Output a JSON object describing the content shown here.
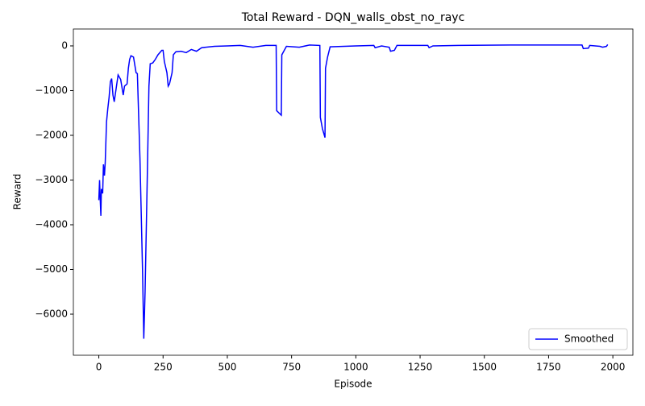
{
  "chart_data": {
    "type": "line",
    "title": "Total Reward - DQN_walls_obst_no_rayc",
    "xlabel": "Episode",
    "ylabel": "Reward",
    "x": [
      0,
      3,
      5,
      8,
      10,
      15,
      18,
      22,
      25,
      30,
      35,
      40,
      45,
      50,
      55,
      60,
      65,
      75,
      85,
      95,
      100,
      110,
      115,
      120,
      125,
      135,
      145,
      150,
      160,
      170,
      175,
      180,
      190,
      195,
      200,
      210,
      220,
      230,
      245,
      250,
      255,
      265,
      270,
      275,
      285,
      290,
      300,
      320,
      340,
      360,
      380,
      400,
      450,
      500,
      550,
      600,
      650,
      690,
      692,
      710,
      712,
      730,
      780,
      820,
      860,
      862,
      870,
      880,
      882,
      890,
      900,
      1000,
      1070,
      1075,
      1100,
      1130,
      1135,
      1150,
      1160,
      1280,
      1285,
      1300,
      1400,
      1600,
      1880,
      1885,
      1905,
      1910,
      1950,
      1960,
      1975,
      1980
    ],
    "series": [
      {
        "name": "Smoothed",
        "color": "#0000ff",
        "values": [
          -3450,
          -3000,
          -3350,
          -3800,
          -3200,
          -3300,
          -2650,
          -2900,
          -2600,
          -1700,
          -1400,
          -1150,
          -800,
          -730,
          -1100,
          -1250,
          -1050,
          -650,
          -750,
          -1100,
          -900,
          -850,
          -500,
          -300,
          -220,
          -250,
          -600,
          -620,
          -2500,
          -5000,
          -6550,
          -5500,
          -2500,
          -900,
          -400,
          -380,
          -300,
          -200,
          -100,
          -100,
          -350,
          -600,
          -900,
          -850,
          -600,
          -200,
          -130,
          -120,
          -150,
          -80,
          -120,
          -40,
          -10,
          0,
          10,
          -30,
          10,
          10,
          -1450,
          -1550,
          -200,
          -10,
          -30,
          20,
          10,
          -1600,
          -1850,
          -2050,
          -500,
          -250,
          -20,
          0,
          10,
          -40,
          0,
          -30,
          -120,
          -100,
          10,
          10,
          -40,
          0,
          10,
          20,
          20,
          -60,
          -50,
          10,
          -10,
          -30,
          -10,
          30
        ]
      }
    ],
    "xlim": [
      -99,
      2078
    ],
    "ylim": [
      -6919,
      378
    ],
    "xticks": [
      0,
      250,
      500,
      750,
      1000,
      1250,
      1500,
      1750,
      2000
    ],
    "yticks": [
      {
        "value": -6000,
        "label": "−6000"
      },
      {
        "value": -5000,
        "label": "−5000"
      },
      {
        "value": -4000,
        "label": "−4000"
      },
      {
        "value": -3000,
        "label": "−3000"
      },
      {
        "value": -2000,
        "label": "−2000"
      },
      {
        "value": -1000,
        "label": "−1000"
      },
      0
    ],
    "legend": "lower right"
  }
}
